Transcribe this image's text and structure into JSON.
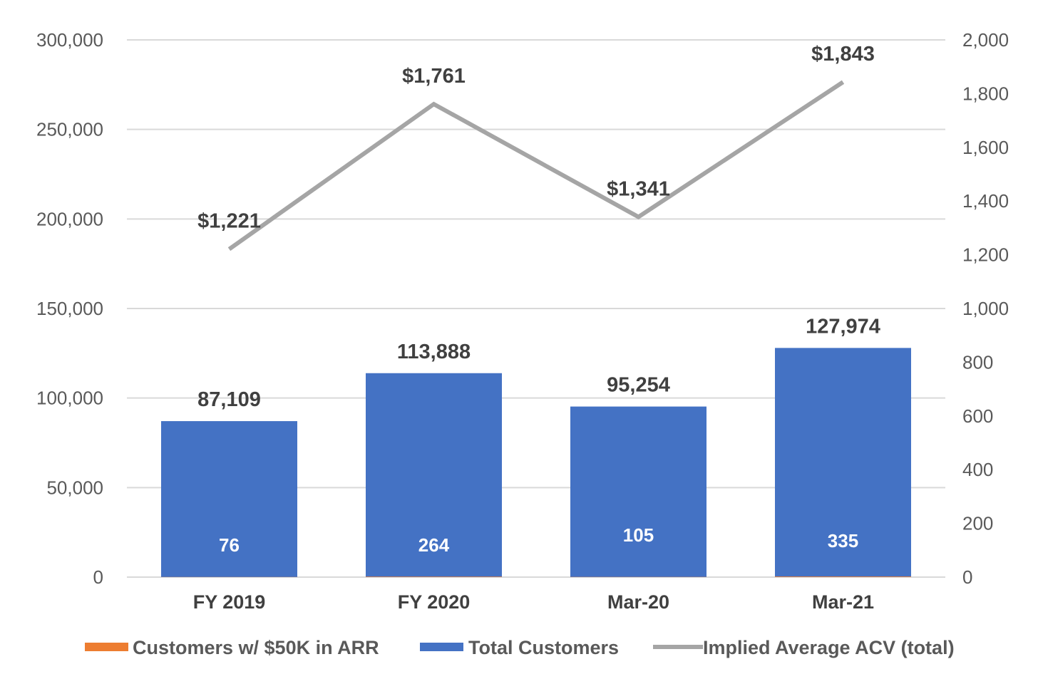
{
  "chart_data": {
    "type": "bar",
    "categories": [
      "FY 2019",
      "FY 2020",
      "Mar-20",
      "Mar-21"
    ],
    "series": [
      {
        "name": "Customers w/ $50K in ARR",
        "type": "bar",
        "axis": "left",
        "values": [
          76,
          264,
          105,
          335
        ],
        "data_labels": [
          "76",
          "264",
          "105",
          "335"
        ],
        "color": "#ED7D31"
      },
      {
        "name": "Total Customers",
        "type": "bar",
        "axis": "left",
        "values": [
          87109,
          113888,
          95254,
          127974
        ],
        "data_labels": [
          "87,109",
          "113,888",
          "95,254",
          "127,974"
        ],
        "color": "#4472C4"
      },
      {
        "name": "Implied Average ACV (total)",
        "type": "line",
        "axis": "right",
        "values": [
          1221,
          1761,
          1341,
          1843
        ],
        "data_labels": [
          "$1,221",
          "$1,761",
          "$1,341",
          "$1,843"
        ],
        "color": "#A5A5A5"
      }
    ],
    "y_left": {
      "ylim": [
        0,
        300000
      ],
      "ticks": [
        0,
        50000,
        100000,
        150000,
        200000,
        250000,
        300000
      ],
      "tick_labels": [
        "0",
        "50,000",
        "100,000",
        "150,000",
        "200,000",
        "250,000",
        "300,000"
      ]
    },
    "y_right": {
      "ylim": [
        0,
        2000
      ],
      "ticks": [
        0,
        200,
        400,
        600,
        800,
        1000,
        1200,
        1400,
        1600,
        1800,
        2000
      ],
      "tick_labels": [
        "0",
        "200",
        "400",
        "600",
        "800",
        "1,000",
        "1,200",
        "1,400",
        "1,600",
        "1,800",
        "2,000"
      ]
    },
    "grid": true,
    "legend_position": "bottom",
    "grid_color": "#D9D9D9"
  }
}
